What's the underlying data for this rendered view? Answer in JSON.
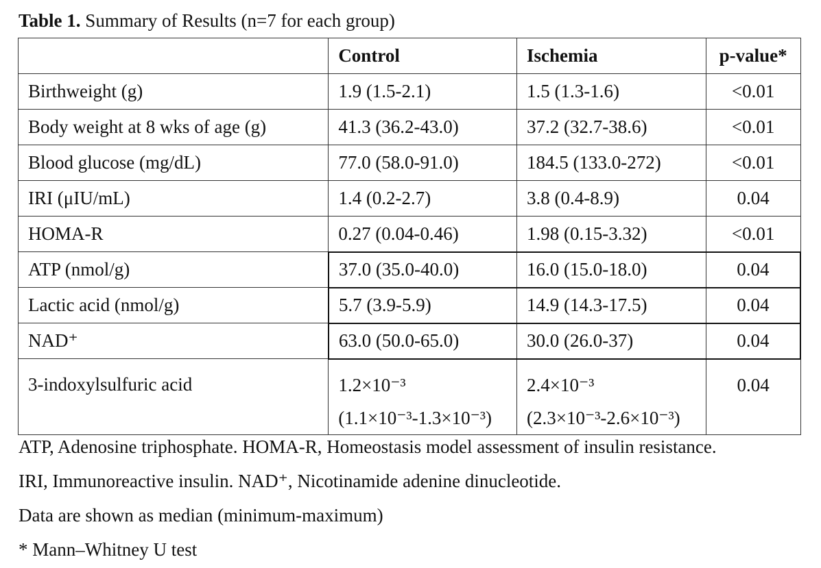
{
  "caption": {
    "label": "Table 1.",
    "text": "Summary of Results (n=7 for each group)"
  },
  "table": {
    "headers": [
      "",
      "Control",
      "Ischemia",
      "p-value*"
    ],
    "rows": [
      {
        "label": "Birthweight (g)",
        "control": "1.9 (1.5-2.1)",
        "ischemia": "1.5 (1.3-1.6)",
        "p": "<0.01"
      },
      {
        "label": "Body weight at 8 wks of age (g)",
        "control": "41.3 (36.2-43.0)",
        "ischemia": "37.2 (32.7-38.6)",
        "p": "<0.01"
      },
      {
        "label": "Blood glucose (mg/dL)",
        "control": "77.0 (58.0-91.0)",
        "ischemia": "184.5 (133.0-272)",
        "p": "<0.01"
      },
      {
        "label": "IRI (μIU/mL)",
        "control": "1.4 (0.2-2.7)",
        "ischemia": "3.8 (0.4-8.9)",
        "p": "0.04"
      },
      {
        "label": "HOMA-R",
        "control": "0.27 (0.04-0.46)",
        "ischemia": "1.98 (0.15-3.32)",
        "p": "<0.01"
      },
      {
        "label": "ATP (nmol/g)",
        "control": "37.0 (35.0-40.0)",
        "ischemia": "16.0 (15.0-18.0)",
        "p": "0.04"
      },
      {
        "label": "Lactic acid (nmol/g)",
        "control": "5.7 (3.9-5.9)",
        "ischemia": "14.9 (14.3-17.5)",
        "p": "0.04"
      },
      {
        "label": "NAD⁺",
        "control": "63.0 (50.0-65.0)",
        "ischemia": "30.0 (26.0-37)",
        "p": "0.04"
      },
      {
        "label": "3-indoxylsulfuric acid",
        "control": "1.2×10⁻³",
        "control_range": "(1.1×10⁻³-1.3×10⁻³)",
        "ischemia": "2.4×10⁻³",
        "ischemia_range": "(2.3×10⁻³-2.6×10⁻³)",
        "p": "0.04"
      }
    ]
  },
  "footnotes": [
    "ATP, Adenosine triphosphate. HOMA-R, Homeostasis model assessment of insulin resistance.",
    "IRI, Immunoreactive insulin. NAD⁺, Nicotinamide adenine dinucleotide.",
    "Data are shown as median (minimum-maximum)",
    "* Mann–Whitney U test"
  ]
}
